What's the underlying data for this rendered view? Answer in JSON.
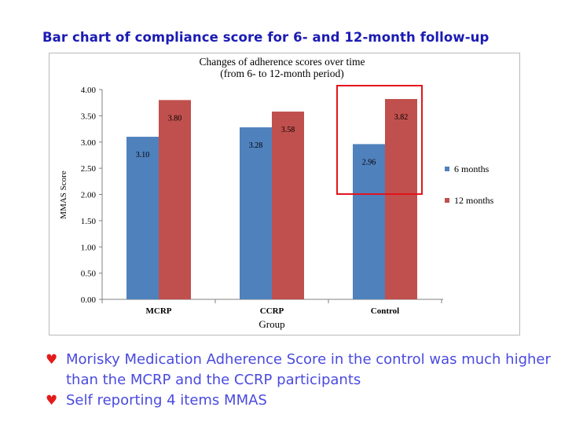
{
  "slide": {
    "title": "Bar chart of compliance score for 6- and 12-month follow-up",
    "bullets": [
      {
        "icon": "heart-bullet-icon",
        "text": "Morisky Medication Adherence Score in the control was much higher than the MCRP and the CCRP participants"
      },
      {
        "icon": "heart-bullet-icon",
        "text": "Self reporting 4 items MMAS"
      }
    ],
    "highlight_color": "#e3141b",
    "bullet_color": "#e21b1b"
  },
  "chart_data": {
    "type": "bar",
    "title": "Changes of adherence scores over time",
    "subtitle": "(from 6- to 12-month period)",
    "xlabel": "Group",
    "ylabel": "MMAS  Score",
    "categories": [
      "MCRP",
      "CCRP",
      "Control"
    ],
    "series": [
      {
        "name": "6 months",
        "values": [
          3.1,
          3.28,
          2.96
        ],
        "labels": [
          "3.10",
          "3.28",
          "2.96"
        ],
        "color": "#4f81bd"
      },
      {
        "name": "12 months",
        "values": [
          3.8,
          3.58,
          3.82
        ],
        "labels": [
          "3.80",
          "3.58",
          "3.82"
        ],
        "color": "#c0504d"
      }
    ],
    "ylim": [
      0,
      4
    ],
    "yticks": [
      "0.00",
      "0.50",
      "1.00",
      "1.50",
      "2.00",
      "2.50",
      "3.00",
      "3.50",
      "4.00"
    ],
    "grid": false,
    "legend_position": "right",
    "highlighted_category": "Control"
  }
}
